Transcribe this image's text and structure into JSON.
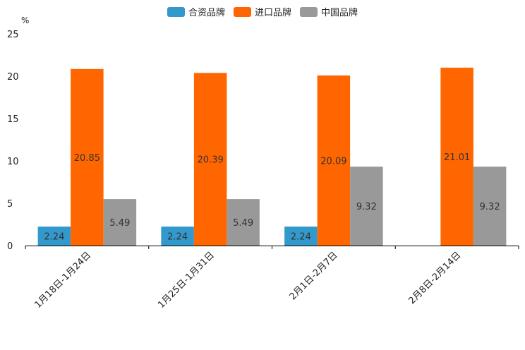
{
  "chart_data": {
    "type": "bar",
    "title": "",
    "xlabel": "",
    "ylabel": "%",
    "ylim": [
      0,
      25
    ],
    "yticks": [
      0,
      5,
      10,
      15,
      20,
      25
    ],
    "grid": false,
    "legend_position": "top-center",
    "categories": [
      "1月18日-1月24日",
      "1月25日-1月31日",
      "2月1日-2月7日",
      "2月8日-2月14日"
    ],
    "series": [
      {
        "name": "合资品牌",
        "color": "#3399cc",
        "values": [
          2.24,
          2.24,
          2.24,
          null
        ]
      },
      {
        "name": "进口品牌",
        "color": "#ff6600",
        "values": [
          20.85,
          20.39,
          20.09,
          21.01
        ]
      },
      {
        "name": "中国品牌",
        "color": "#999999",
        "values": [
          5.49,
          5.49,
          9.32,
          9.32
        ]
      }
    ]
  }
}
